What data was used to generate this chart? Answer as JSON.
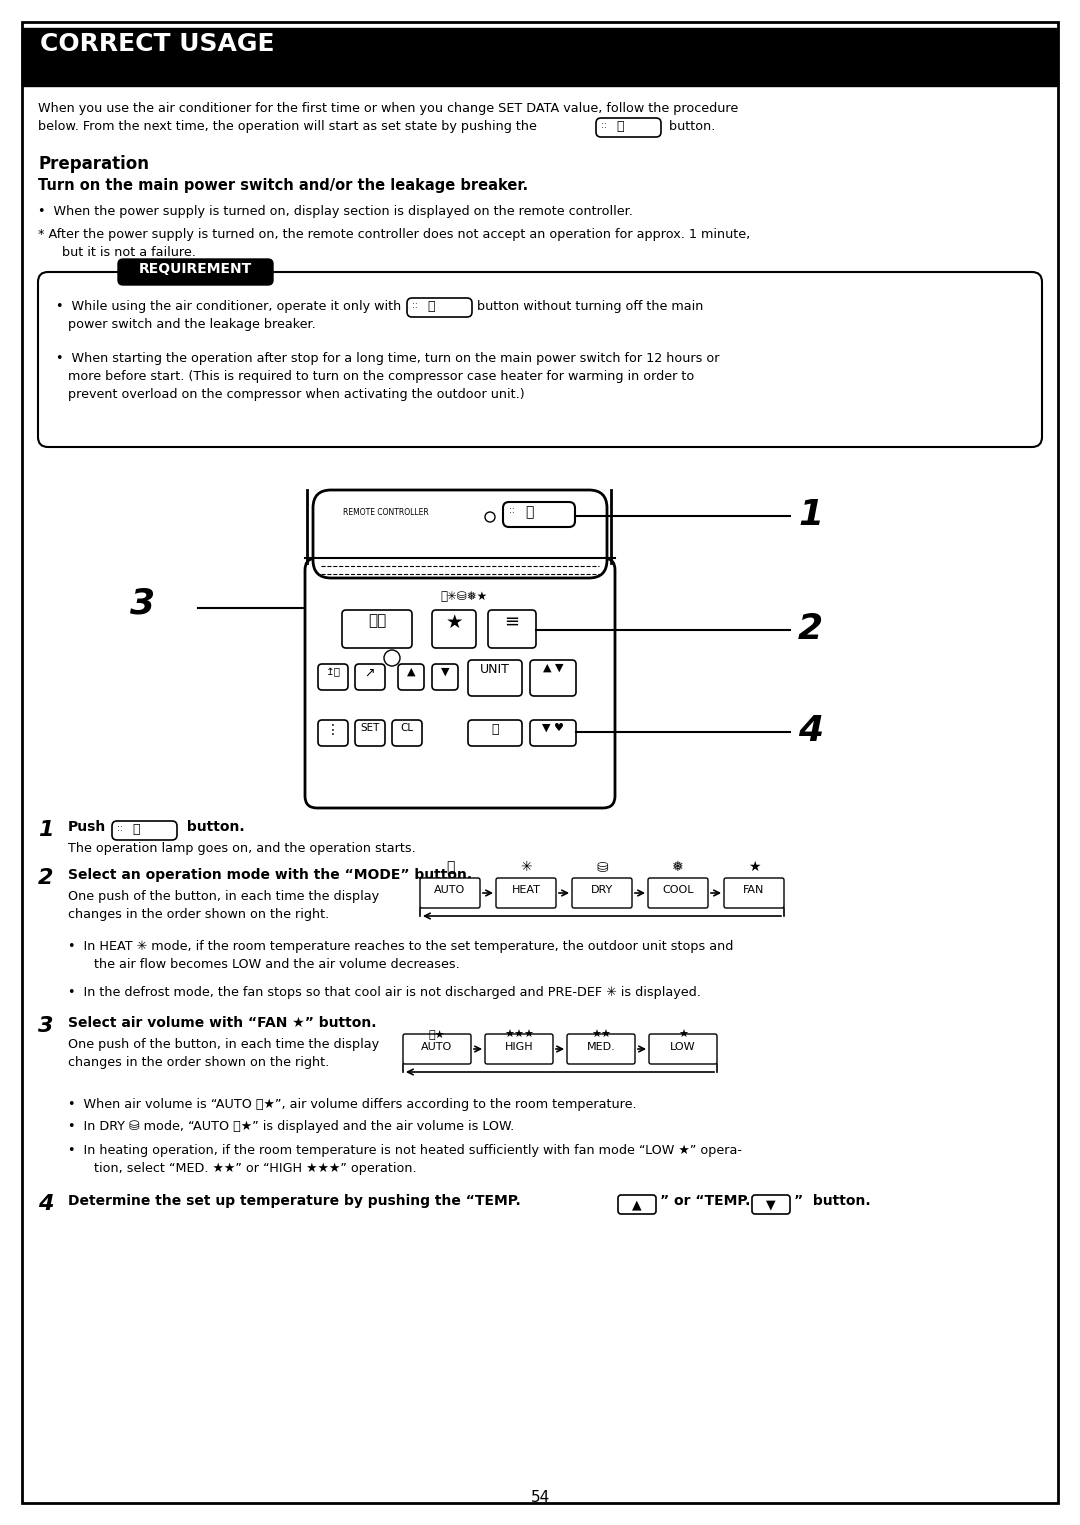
{
  "title": "CORRECT USAGE",
  "page_number": "54",
  "bg": "#ffffff",
  "intro1": "When you use the air conditioner for the first time or when you change SET DATA value, follow the procedure",
  "intro2": "below. From the next time, the operation will start as set state by pushing the",
  "intro3": " button.",
  "prep_head": "Preparation",
  "prep_sub": "Turn on the main power switch and/or the leakage breaker.",
  "prep_b1": "•  When the power supply is turned on, display section is displayed on the remote controller.",
  "prep_b2": "* After the power supply is turned on, the remote controller does not accept an operation for approx. 1 minute,",
  "prep_b2b": "   but it is not a failure.",
  "req_head": "REQUIREMENT",
  "req_b1a": "•  While using the air conditioner, operate it only with",
  "req_b1b": "button without turning off the main",
  "req_b1c": "   power switch and the leakage breaker.",
  "req_b2": "•  When starting the operation after stop for a long time, turn on the main power switch for 12 hours or",
  "req_b2b": "   more before start. (This is required to turn on the compressor case heater for warming in order to",
  "req_b2c": "   prevent overload on the compressor when activating the outdoor unit.)",
  "s1a": "Push",
  "s1b": " button.",
  "s1c": "The operation lamp goes on, and the operation starts.",
  "s2": "Select an operation mode with the “MODE” button.",
  "s2a": "One push of the button, in each time the display",
  "s2b": "changes in the order shown on the right.",
  "s2n1": "•  In HEAT ✳ mode, if the room temperature reaches to the set temperature, the outdoor unit stops and",
  "s2n1b": "   the air flow becomes LOW and the air volume decreases.",
  "s2n2": "•  In the defrost mode, the fan stops so that cool air is not discharged and PRE-DEF ✳ is displayed.",
  "s3": "Select air volume with “FAN ★” button.",
  "s3a": "One push of the button, in each time the display",
  "s3b": "changes in the order shown on the right.",
  "s3n1": "•  When air volume is “AUTO Ⓐ★”, air volume differs according to the room temperature.",
  "s3n2": "•  In DRY ⛁ mode, “AUTO Ⓐ★” is displayed and the air volume is LOW.",
  "s3n3": "•  In heating operation, if the room temperature is not heated sufficiently with fan mode “LOW ★” opera-",
  "s3n3b": "   tion, select “MED. ★★” or “HIGH ★★★” operation.",
  "s4": "Determine the set up temperature by pushing the “TEMP.",
  "s4b": "” or “TEMP.",
  "s4c": "”  button."
}
